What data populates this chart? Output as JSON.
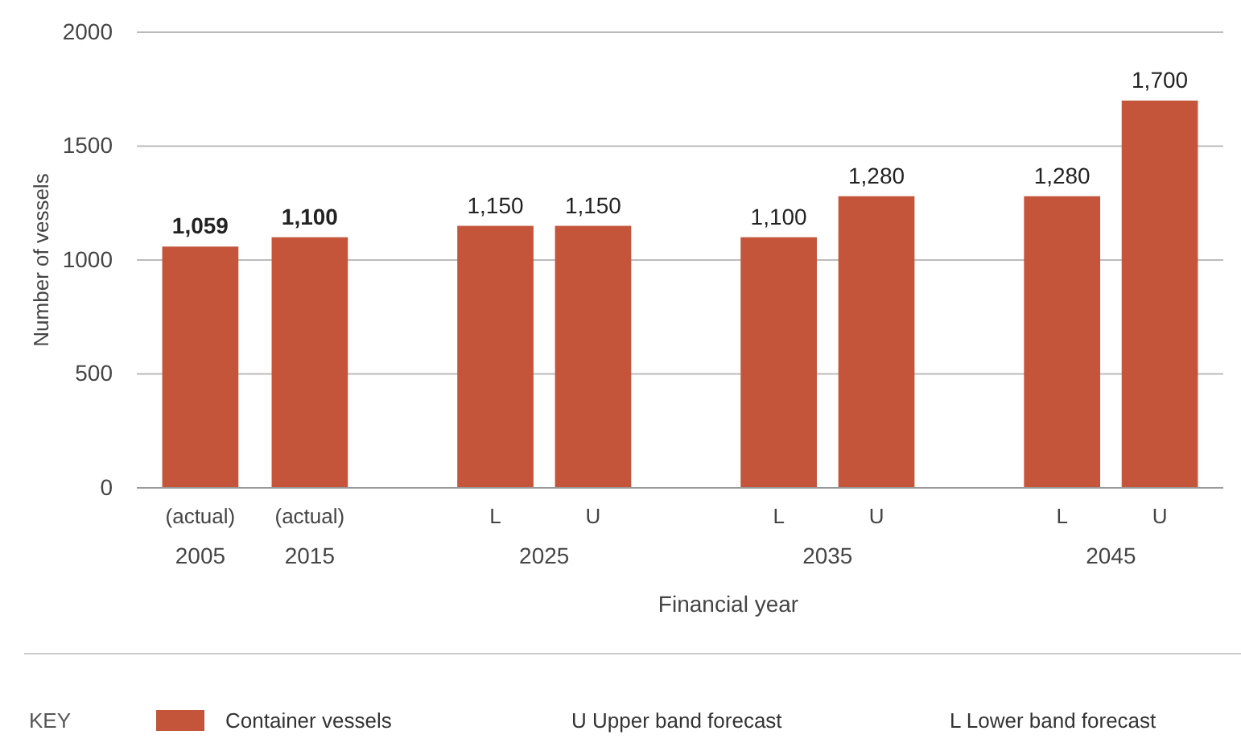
{
  "chart_data": {
    "type": "bar",
    "xlabel": "Financial year",
    "ylabel": "Number of vessels",
    "categories": [
      "(actual)",
      "(actual)",
      "L",
      "U",
      "L",
      "U",
      "L",
      "U"
    ],
    "series": [
      {
        "name": "Container vessels",
        "color": "#c4553b",
        "values": [
          1059,
          1100,
          1150,
          1150,
          1100,
          1280,
          1280,
          1700
        ],
        "value_labels": [
          "1,059",
          "1,100",
          "1,150",
          "1,150",
          "1,100",
          "1,280",
          "1,280",
          "1,700"
        ]
      }
    ],
    "ylim": [
      0,
      2000
    ],
    "yticks": [
      0,
      500,
      1000,
      1500,
      2000
    ],
    "grid": "y",
    "legend": "bottom",
    "annotations": [
      "2005",
      "2015",
      "2025",
      "2035",
      "2045",
      "KEY",
      "U  Upper band forecast",
      "L  Lower band forecast"
    ]
  }
}
